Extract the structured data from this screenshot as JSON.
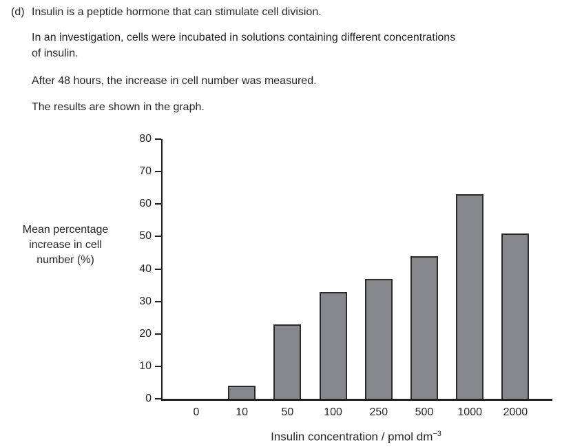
{
  "question": {
    "label": "(d)",
    "paragraphs": [
      "Insulin is a peptide hormone that can stimulate cell division.",
      "In an investigation, cells were incubated in solutions containing different concentrations of insulin.",
      "After 48 hours, the increase in cell number was measured.",
      "The results are shown in the graph."
    ]
  },
  "chart_data": {
    "type": "bar",
    "categories": [
      "0",
      "10",
      "50",
      "100",
      "250",
      "500",
      "1000",
      "2000"
    ],
    "values": [
      0,
      4,
      23,
      33,
      37,
      44,
      63,
      51
    ],
    "xlabel": "Insulin concentration / pmol dm",
    "xlabel_sup": "−3",
    "ylabel": "Mean percentage increase in cell number (%)",
    "ylabel_lines": [
      "Mean percentage",
      "increase in cell",
      "number (%)"
    ],
    "yticks": [
      0,
      10,
      20,
      30,
      40,
      50,
      60,
      70,
      80
    ],
    "ylim": [
      0,
      80
    ],
    "grid": false,
    "legend": false,
    "bar_fill": "#85878a",
    "bar_border": "#2b2b2e",
    "axis_color": "#212121",
    "text_color": "#26262a"
  }
}
